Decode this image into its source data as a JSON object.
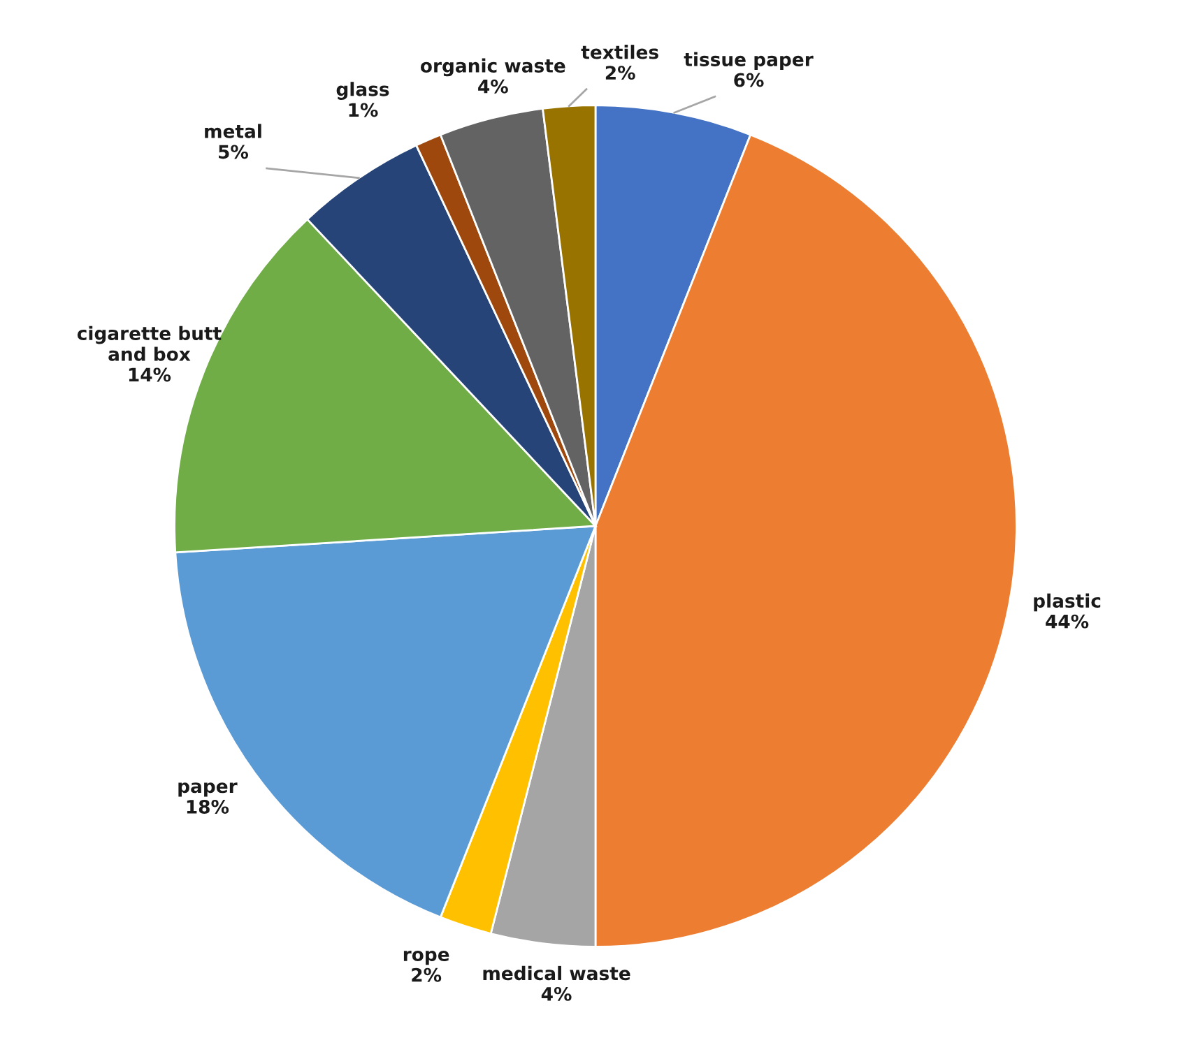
{
  "chart_data": {
    "type": "pie",
    "categories": [
      "tissue paper",
      "plastic",
      "medical waste",
      "rope",
      "paper",
      "cigarette butt\nand box",
      "metal",
      "glass",
      "organic waste",
      "textiles"
    ],
    "values": [
      6,
      44,
      4,
      2,
      18,
      14,
      5,
      1,
      4,
      2
    ],
    "colors": [
      "#4472c4",
      "#ed7d31",
      "#a5a5a5",
      "#ffc000",
      "#5b9bd5",
      "#70ad47",
      "#264478",
      "#9e480e",
      "#636363",
      "#997300"
    ],
    "value_labels": [
      "6%",
      "44%",
      "4%",
      "2%",
      "18%",
      "14%",
      "5%",
      "1%",
      "4%",
      "2%"
    ],
    "legend": false
  }
}
